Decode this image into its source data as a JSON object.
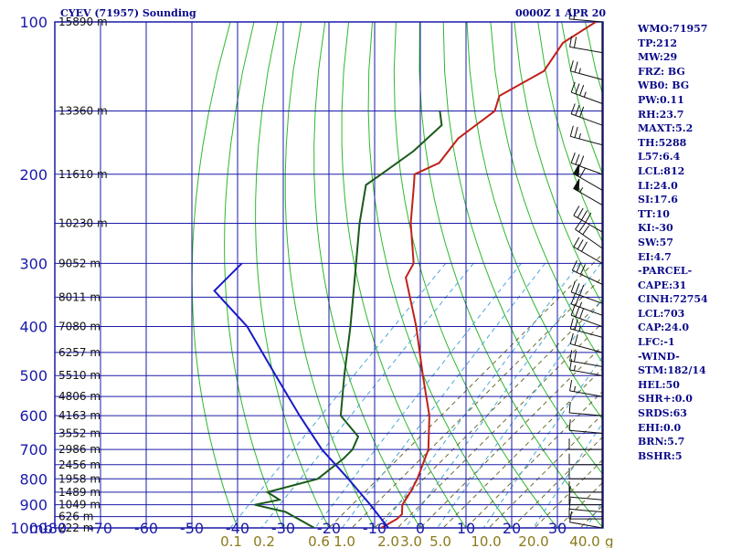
{
  "header": {
    "station_title": "CYEV (71957) Sounding",
    "time_title": "0000Z  1 APR 20"
  },
  "indices": [
    "WMO:71957",
    "TP:212",
    "MW:29",
    "FRZ: BG",
    "WB0: BG",
    "PW:0.11",
    "RH:23.7",
    "MAXT:5.2",
    "TH:5288",
    "L57:6.4",
    "LCL:812",
    "LI:24.0",
    "SI:17.6",
    "TT:10",
    "KI:-30",
    "SW:57",
    "EI:4.7",
    "-PARCEL-",
    "CAPE:31",
    "CINH:72754",
    "LCL:703",
    "CAP:24.0",
    "LFC:-1",
    "-WIND-",
    "STM:182/14",
    "HEL:50",
    "SHR+:0.0",
    "SRDS:63",
    "EHI:0.0",
    "BRN:5.7",
    "BSHR:5"
  ],
  "colors": {
    "grid": "#1a1aa8",
    "text": "#0a0a8a",
    "dry_adiabat": "#2db82d",
    "moist_adiabat": "#6a6a2a",
    "mixing_ratio": "#4aa8d8",
    "temperature": "#c0201a",
    "dewpoint": "#1a5a1a",
    "parcel": "#1a1ac8",
    "wind": "#111111",
    "mixing_label": "#8a7a1a"
  },
  "chart_data": {
    "type": "line",
    "diagram": "skew-T log-P",
    "pressure_unit_label": "mb",
    "pressure_levels": [
      100,
      200,
      300,
      400,
      500,
      600,
      700,
      800,
      900,
      1000
    ],
    "temperature_ticks": [
      -80,
      -70,
      -60,
      -50,
      -40,
      -30,
      -20,
      -10,
      0,
      10,
      20,
      30
    ],
    "height_labels": [
      {
        "p": 100,
        "text": "15890 m"
      },
      {
        "p": 150,
        "text": "13360 m"
      },
      {
        "p": 200,
        "text": "11610 m"
      },
      {
        "p": 250,
        "text": "10230 m"
      },
      {
        "p": 300,
        "text": "9052 m"
      },
      {
        "p": 350,
        "text": "8011 m"
      },
      {
        "p": 400,
        "text": "7080 m"
      },
      {
        "p": 450,
        "text": "6257 m"
      },
      {
        "p": 500,
        "text": "5510 m"
      },
      {
        "p": 550,
        "text": "4806 m"
      },
      {
        "p": 600,
        "text": "4163 m"
      },
      {
        "p": 650,
        "text": "3552 m"
      },
      {
        "p": 700,
        "text": "2986 m"
      },
      {
        "p": 750,
        "text": "2456 m"
      },
      {
        "p": 800,
        "text": "1958 m"
      },
      {
        "p": 850,
        "text": "1489 m"
      },
      {
        "p": 900,
        "text": "1049 m"
      },
      {
        "p": 950,
        "text": "626 m"
      },
      {
        "p": 1000,
        "text": "222 m"
      }
    ],
    "mixing_ratio_labels": [
      "0.1",
      "0.2",
      "0.6",
      "1.0",
      "2.0",
      "3.0",
      "5.0",
      "10.0",
      "20.0",
      "40.0"
    ],
    "mixing_ratio_unit": "g",
    "series": [
      {
        "points": [
          [
            100,
            -72.4
          ],
          [
            110,
            -75.0
          ],
          [
            125,
            -73.0
          ],
          [
            140,
            -77.3
          ],
          [
            150,
            -75.0
          ],
          [
            170,
            -77.0
          ],
          [
            190,
            -75.8
          ],
          [
            200,
            -78.7
          ],
          [
            210,
            -76.5
          ],
          [
            250,
            -68.8
          ],
          [
            300,
            -59.4
          ],
          [
            320,
            -58.0
          ],
          [
            400,
            -45.0
          ],
          [
            500,
            -32.8
          ],
          [
            600,
            -22.6
          ],
          [
            700,
            -15.4
          ],
          [
            800,
            -11.4
          ],
          [
            850,
            -10.0
          ],
          [
            900,
            -9.0
          ],
          [
            940,
            -7.0
          ],
          [
            960,
            -7.1
          ],
          [
            1000,
            -8.5
          ]
        ]
      },
      {
        "points": [
          [
            150,
            -87.0
          ],
          [
            160,
            -83.5
          ],
          [
            180,
            -84.0
          ],
          [
            200,
            -86.0
          ],
          [
            210,
            -87.0
          ],
          [
            250,
            -80.0
          ],
          [
            300,
            -72.0
          ],
          [
            400,
            -59.4
          ],
          [
            500,
            -50.0
          ],
          [
            600,
            -42.0
          ],
          [
            660,
            -33.6
          ],
          [
            700,
            -32.0
          ],
          [
            730,
            -32.0
          ],
          [
            800,
            -33.2
          ],
          [
            850,
            -41.3
          ],
          [
            880,
            -37.0
          ],
          [
            900,
            -41.3
          ],
          [
            930,
            -33.0
          ],
          [
            1000,
            -23.2
          ]
        ]
      },
      {
        "points": [
          [
            300,
            -97.0
          ],
          [
            340,
            -97.0
          ],
          [
            400,
            -82.0
          ],
          [
            500,
            -65.0
          ],
          [
            600,
            -51.0
          ],
          [
            700,
            -38.7
          ],
          [
            800,
            -26.5
          ],
          [
            900,
            -16.0
          ],
          [
            1000,
            -7.0
          ]
        ]
      }
    ],
    "wind_barbs": [
      {
        "p": 100,
        "dir": 275,
        "spd": 15
      },
      {
        "p": 115,
        "dir": 280,
        "spd": 20
      },
      {
        "p": 130,
        "dir": 285,
        "spd": 25
      },
      {
        "p": 145,
        "dir": 290,
        "spd": 35
      },
      {
        "p": 160,
        "dir": 290,
        "spd": 30
      },
      {
        "p": 175,
        "dir": 285,
        "spd": 25
      },
      {
        "p": 200,
        "dir": 290,
        "spd": 30
      },
      {
        "p": 215,
        "dir": 300,
        "spd": 60
      },
      {
        "p": 230,
        "dir": 300,
        "spd": 55
      },
      {
        "p": 260,
        "dir": 300,
        "spd": 40
      },
      {
        "p": 280,
        "dir": 305,
        "spd": 30
      },
      {
        "p": 300,
        "dir": 300,
        "spd": 30
      },
      {
        "p": 330,
        "dir": 295,
        "spd": 30
      },
      {
        "p": 360,
        "dir": 290,
        "spd": 30
      },
      {
        "p": 380,
        "dir": 290,
        "spd": 25
      },
      {
        "p": 400,
        "dir": 290,
        "spd": 30
      },
      {
        "p": 420,
        "dir": 285,
        "spd": 25
      },
      {
        "p": 450,
        "dir": 285,
        "spd": 20
      },
      {
        "p": 480,
        "dir": 280,
        "spd": 20
      },
      {
        "p": 500,
        "dir": 280,
        "spd": 15
      },
      {
        "p": 550,
        "dir": 280,
        "spd": 15
      },
      {
        "p": 600,
        "dir": 275,
        "spd": 10
      },
      {
        "p": 650,
        "dir": 275,
        "spd": 10
      },
      {
        "p": 700,
        "dir": 270,
        "spd": 10
      },
      {
        "p": 750,
        "dir": 270,
        "spd": 10
      },
      {
        "p": 800,
        "dir": 270,
        "spd": 10
      },
      {
        "p": 850,
        "dir": 270,
        "spd": 10
      },
      {
        "p": 880,
        "dir": 275,
        "spd": 10
      },
      {
        "p": 900,
        "dir": 270,
        "spd": 10
      },
      {
        "p": 930,
        "dir": 275,
        "spd": 10
      },
      {
        "p": 960,
        "dir": 270,
        "spd": 10
      },
      {
        "p": 1000,
        "dir": 280,
        "spd": 10
      }
    ]
  }
}
